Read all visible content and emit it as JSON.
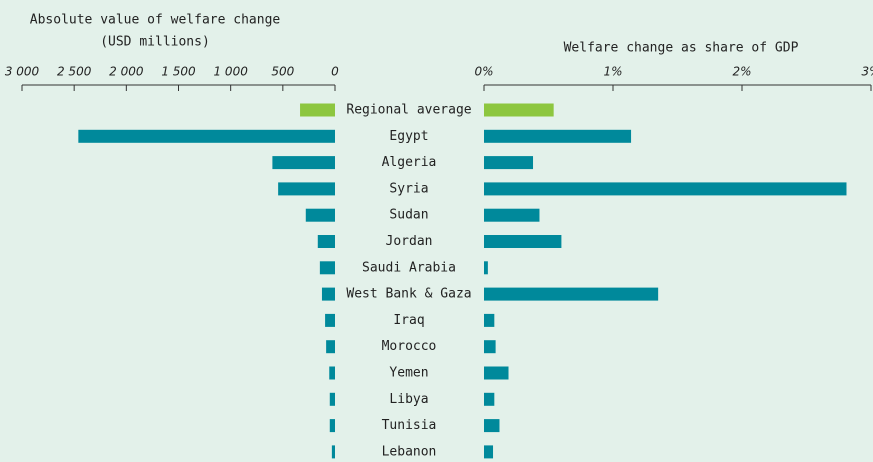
{
  "chart_data": [
    {
      "type": "bar",
      "orientation": "horizontal",
      "reversed": true,
      "title": "Absolute value of welfare change",
      "subtitle": "(USD millions)",
      "categories": [
        "Regional average",
        "Egypt",
        "Algeria",
        "Syria",
        "Sudan",
        "Jordan",
        "Saudi Arabia",
        "West Bank & Gaza",
        "Iraq",
        "Morocco",
        "Yemen",
        "Libya",
        "Tunisia",
        "Lebanon"
      ],
      "values": [
        335,
        2460,
        600,
        545,
        280,
        165,
        145,
        125,
        95,
        85,
        55,
        50,
        50,
        30
      ],
      "colors": [
        "#8dc63f",
        "#00899b",
        "#00899b",
        "#00899b",
        "#00899b",
        "#00899b",
        "#00899b",
        "#00899b",
        "#00899b",
        "#00899b",
        "#00899b",
        "#00899b",
        "#00899b",
        "#00899b"
      ],
      "xlim": [
        0,
        3000
      ],
      "xticks": [
        {
          "value": 3000,
          "label": "3 000"
        },
        {
          "value": 2500,
          "label": "2 500"
        },
        {
          "value": 2000,
          "label": "2 000"
        },
        {
          "value": 1500,
          "label": "1 500"
        },
        {
          "value": 1000,
          "label": "1 000"
        },
        500,
        0
      ]
    },
    {
      "type": "bar",
      "orientation": "horizontal",
      "reversed": false,
      "title": "Welfare change as share of GDP",
      "values": [
        0.54,
        1.14,
        0.38,
        2.81,
        0.43,
        0.6,
        0.03,
        1.35,
        0.08,
        0.09,
        0.19,
        0.08,
        0.12,
        0.07
      ],
      "colors": [
        "#8dc63f",
        "#00899b",
        "#00899b",
        "#00899b",
        "#00899b",
        "#00899b",
        "#00899b",
        "#00899b",
        "#00899b",
        "#00899b",
        "#00899b",
        "#00899b",
        "#00899b",
        "#00899b"
      ],
      "xlim": [
        0,
        3
      ],
      "xticks": [
        {
          "value": 0,
          "label": "0%"
        },
        {
          "value": 1,
          "label": "1%"
        },
        {
          "value": 2,
          "label": "2%"
        },
        {
          "value": 3,
          "label": "3%"
        }
      ]
    }
  ]
}
